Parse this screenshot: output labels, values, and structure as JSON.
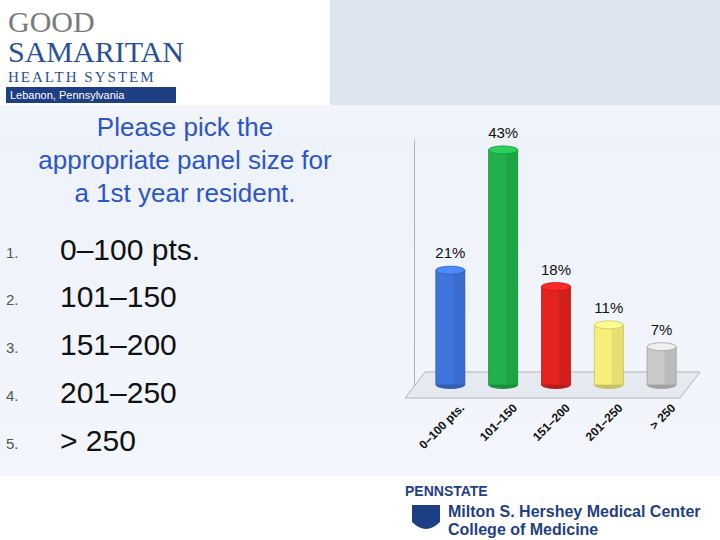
{
  "chart_data": {
    "type": "bar",
    "title": "Please pick the appropriate panel size for a 1st year resident.",
    "categories": [
      "0–100 pts.",
      "101–150",
      "151–200",
      "201–250",
      "> 250"
    ],
    "values": [
      21,
      43,
      18,
      11,
      7
    ],
    "value_labels": [
      "21%",
      "43%",
      "18%",
      "11%",
      "7%"
    ],
    "colors": [
      "#3f74dc",
      "#22b04a",
      "#e4231f",
      "#f6f07a",
      "#c9c9c9"
    ],
    "ylim": [
      0,
      45
    ],
    "data_labels": true,
    "tick_labels": "x",
    "grid": false
  },
  "slide": {
    "list_numbers": [
      "1.",
      "2.",
      "3.",
      "4.",
      "5."
    ],
    "logo_top": [
      "GOOD",
      "SAMARITAN",
      "HEALTH SYSTEM",
      "Lebanon, Pennsylvania"
    ],
    "logo_bottom": [
      "PENNSTATE",
      "Milton S. Hershey Medical Center",
      "College of Medicine"
    ]
  }
}
